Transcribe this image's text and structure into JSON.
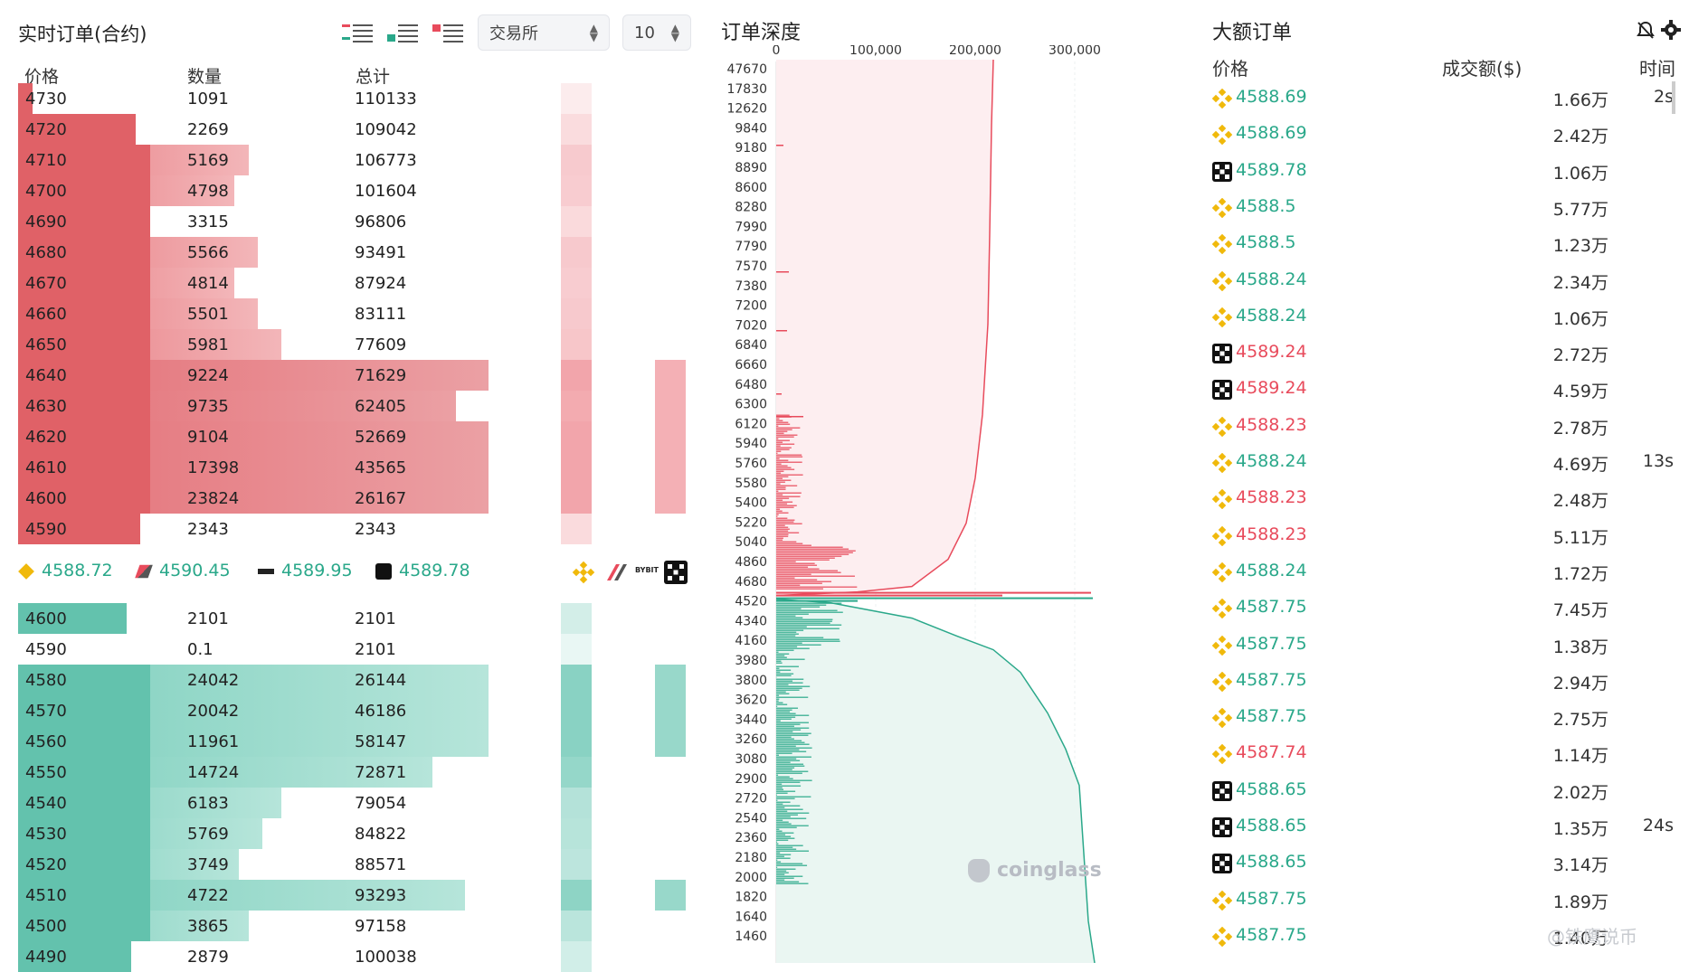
{
  "left": {
    "title": "实时订单(合约)",
    "exchange_select": "交易所",
    "depth_select": "10",
    "col_price": "价格",
    "col_qty": "数量",
    "col_total": "总计",
    "asks": [
      {
        "price": "4730",
        "qty": "1091",
        "total": "110133",
        "fill": 0.03
      },
      {
        "price": "4720",
        "qty": "2269",
        "total": "109042",
        "fill": 0.25
      },
      {
        "price": "4710",
        "qty": "5169",
        "total": "106773",
        "fill": 0.49
      },
      {
        "price": "4700",
        "qty": "4798",
        "total": "101604",
        "fill": 0.46
      },
      {
        "price": "4690",
        "qty": "3315",
        "total": "96806",
        "fill": 0.28
      },
      {
        "price": "4680",
        "qty": "5566",
        "total": "93491",
        "fill": 0.51
      },
      {
        "price": "4670",
        "qty": "4814",
        "total": "87924",
        "fill": 0.46
      },
      {
        "price": "4660",
        "qty": "5501",
        "total": "83111",
        "fill": 0.51
      },
      {
        "price": "4650",
        "qty": "5981",
        "total": "77609",
        "fill": 0.56
      },
      {
        "price": "4640",
        "qty": "9224",
        "total": "71629",
        "fill": 1.0
      },
      {
        "price": "4630",
        "qty": "9735",
        "total": "62405",
        "fill": 0.93
      },
      {
        "price": "4620",
        "qty": "9104",
        "total": "52669",
        "fill": 1.0
      },
      {
        "price": "4610",
        "qty": "17398",
        "total": "43565",
        "fill": 1.0
      },
      {
        "price": "4600",
        "qty": "23824",
        "total": "26167",
        "fill": 1.0
      },
      {
        "price": "4590",
        "qty": "2343",
        "total": "2343",
        "fill": 0.26
      }
    ],
    "bids": [
      {
        "price": "4600",
        "qty": "2101",
        "total": "2101",
        "fill": 0.23
      },
      {
        "price": "4590",
        "qty": "0.1",
        "total": "2101",
        "fill": 0.0
      },
      {
        "price": "4580",
        "qty": "24042",
        "total": "26144",
        "fill": 1.0
      },
      {
        "price": "4570",
        "qty": "20042",
        "total": "46186",
        "fill": 1.0
      },
      {
        "price": "4560",
        "qty": "11961",
        "total": "58147",
        "fill": 1.0
      },
      {
        "price": "4550",
        "qty": "14724",
        "total": "72871",
        "fill": 0.88
      },
      {
        "price": "4540",
        "qty": "6183",
        "total": "79054",
        "fill": 0.56
      },
      {
        "price": "4530",
        "qty": "5769",
        "total": "84822",
        "fill": 0.52
      },
      {
        "price": "4520",
        "qty": "3749",
        "total": "88571",
        "fill": 0.47
      },
      {
        "price": "4510",
        "qty": "4722",
        "total": "93293",
        "fill": 0.95
      },
      {
        "price": "4500",
        "qty": "3865",
        "total": "97158",
        "fill": 0.49
      },
      {
        "price": "4490",
        "qty": "2879",
        "total": "100038",
        "fill": 0.24
      }
    ],
    "exchange_prices": [
      {
        "icon": "binance-icon",
        "value": "4588.72"
      },
      {
        "icon": "bitget-icon",
        "value": "4590.45"
      },
      {
        "icon": "bybit-icon",
        "value": "4589.95"
      },
      {
        "icon": "okx-icon",
        "value": "4589.78"
      }
    ],
    "bybit_text": "BYBIT"
  },
  "depth": {
    "title": "订单深度",
    "x_ticks": [
      "0",
      "100,000",
      "200,000",
      "300,000"
    ],
    "y_labels": [
      "47670",
      "17830",
      "12620",
      "9840",
      "9180",
      "8890",
      "8600",
      "8280",
      "7990",
      "7790",
      "7570",
      "7380",
      "7200",
      "7020",
      "6840",
      "6660",
      "6480",
      "6300",
      "6120",
      "5940",
      "5760",
      "5580",
      "5400",
      "5220",
      "5040",
      "4860",
      "4680",
      "4520",
      "4340",
      "4160",
      "3980",
      "3800",
      "3620",
      "3440",
      "3260",
      "3080",
      "2900",
      "2720",
      "2540",
      "2360",
      "2180",
      "2000",
      "1820",
      "1640",
      "1460"
    ],
    "watermark": "coinglass",
    "ask_color": "#e84b5c",
    "bid_color": "#2aa88a"
  },
  "large_orders": {
    "title": "大额订单",
    "col_price": "价格",
    "col_amount": "成交额($)",
    "col_time": "时间",
    "rows": [
      {
        "ex": "binance",
        "price": "4588.69",
        "side": "buy",
        "amount": "1.66万",
        "time": "2s"
      },
      {
        "ex": "binance",
        "price": "4588.69",
        "side": "buy",
        "amount": "2.42万",
        "time": ""
      },
      {
        "ex": "okx",
        "price": "4589.78",
        "side": "buy",
        "amount": "1.06万",
        "time": ""
      },
      {
        "ex": "binance",
        "price": "4588.5",
        "side": "buy",
        "amount": "5.77万",
        "time": ""
      },
      {
        "ex": "binance",
        "price": "4588.5",
        "side": "buy",
        "amount": "1.23万",
        "time": ""
      },
      {
        "ex": "binance",
        "price": "4588.24",
        "side": "buy",
        "amount": "2.34万",
        "time": ""
      },
      {
        "ex": "binance",
        "price": "4588.24",
        "side": "buy",
        "amount": "1.06万",
        "time": ""
      },
      {
        "ex": "okx",
        "price": "4589.24",
        "side": "sell",
        "amount": "2.72万",
        "time": ""
      },
      {
        "ex": "okx",
        "price": "4589.24",
        "side": "sell",
        "amount": "4.59万",
        "time": ""
      },
      {
        "ex": "binance",
        "price": "4588.23",
        "side": "sell",
        "amount": "2.78万",
        "time": ""
      },
      {
        "ex": "binance",
        "price": "4588.24",
        "side": "buy",
        "amount": "4.69万",
        "time": "13s"
      },
      {
        "ex": "binance",
        "price": "4588.23",
        "side": "sell",
        "amount": "2.48万",
        "time": ""
      },
      {
        "ex": "binance",
        "price": "4588.23",
        "side": "sell",
        "amount": "5.11万",
        "time": ""
      },
      {
        "ex": "binance",
        "price": "4588.24",
        "side": "buy",
        "amount": "1.72万",
        "time": ""
      },
      {
        "ex": "binance",
        "price": "4587.75",
        "side": "buy",
        "amount": "7.45万",
        "time": ""
      },
      {
        "ex": "binance",
        "price": "4587.75",
        "side": "buy",
        "amount": "1.38万",
        "time": ""
      },
      {
        "ex": "binance",
        "price": "4587.75",
        "side": "buy",
        "amount": "2.94万",
        "time": ""
      },
      {
        "ex": "binance",
        "price": "4587.75",
        "side": "buy",
        "amount": "2.75万",
        "time": ""
      },
      {
        "ex": "binance",
        "price": "4587.74",
        "side": "sell",
        "amount": "1.14万",
        "time": ""
      },
      {
        "ex": "okx",
        "price": "4588.65",
        "side": "buy",
        "amount": "2.02万",
        "time": ""
      },
      {
        "ex": "okx",
        "price": "4588.65",
        "side": "buy",
        "amount": "1.35万",
        "time": "24s"
      },
      {
        "ex": "okx",
        "price": "4588.65",
        "side": "buy",
        "amount": "3.14万",
        "time": ""
      },
      {
        "ex": "binance",
        "price": "4587.75",
        "side": "buy",
        "amount": "1.89万",
        "time": ""
      },
      {
        "ex": "binance",
        "price": "4587.75",
        "side": "buy",
        "amount": "1.40万",
        "time": ""
      }
    ],
    "footer_watermark": "@铁鹰说币"
  }
}
